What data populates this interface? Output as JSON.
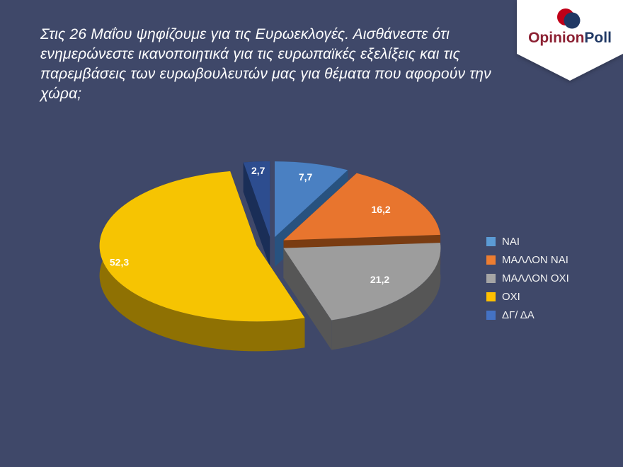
{
  "background": "#3f4869",
  "title": "Στις 26 Μαΐου ψηφίζουμε για τις Ευρωεκλογές. Αισθάνεστε ότι ενημερώνεστε ικανοποιητικά για τις ευρωπαϊκές εξελίξεις και τις παρεμβάσεις των ευρωβουλευτών μας για θέματα που αφορούν την χώρα;",
  "title_lines": [
    "Στις 26 Μαΐου ψηφίζουμε για τις Ευρωεκλογές. Αισθάνεστε ότι",
    "ενημερώνεστε ικανοποιητικά για τις ευρωπαϊκές εξελίξεις και τις",
    "παρεμβάσεις των ευρωβουλευτών μας για θέματα που αφορούν την",
    "χώρα;"
  ],
  "logo": {
    "text_primary": "Opinion",
    "text_secondary": "Poll",
    "color_primary": "#8c2133",
    "color_secondary": "#203864",
    "mark_red": "#c00018",
    "mark_navy": "#203864",
    "shield_color": "#ffffff"
  },
  "chart_data": {
    "type": "pie",
    "style": "3d-exploded",
    "labels": [
      "ΝΑΙ",
      "ΜΑΛΛΟΝ ΝΑΙ",
      "ΜΑΛΛΟΝ ΟΧΙ",
      "ΟΧΙ",
      "ΔΓ/ ΔΑ"
    ],
    "values": [
      7.7,
      16.2,
      21.2,
      52.3,
      2.7
    ],
    "value_labels": [
      "7,7",
      "16,2",
      "21,2",
      "52,3",
      "2,7"
    ],
    "colors": [
      "#4a80c2",
      "#e8752e",
      "#9d9d9d",
      "#f6c402",
      "#2d4d8f"
    ],
    "side_colors": [
      "#28527f",
      "#7a3c12",
      "#565656",
      "#8f7103",
      "#1a2e57"
    ],
    "legend_colors": [
      "#5b9bd5",
      "#ed7d31",
      "#a5a5a5",
      "#ffc000",
      "#4472c4"
    ],
    "legend_position": "right",
    "units": "percent"
  }
}
